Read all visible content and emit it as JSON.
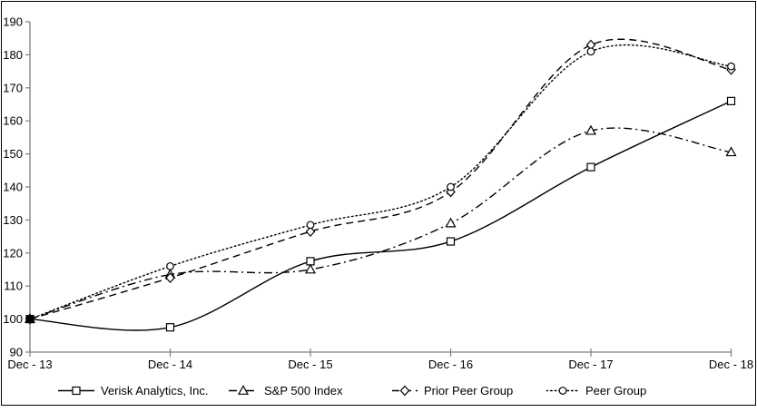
{
  "figure": {
    "background_color": "#ffffff",
    "frame_color": "#000000",
    "axis_color": "#7f7f7f",
    "series_color": "#000000"
  },
  "chart_data": {
    "type": "line",
    "smooth": true,
    "grid": false,
    "x": [
      "Dec - 13",
      "Dec - 14",
      "Dec - 15",
      "Dec - 16",
      "Dec - 17",
      "Dec - 18"
    ],
    "series": [
      {
        "name": "Verisk Analytics, Inc.",
        "marker": "square",
        "line_style": "solid",
        "values": [
          100,
          97.5,
          117.5,
          123.5,
          146,
          166
        ]
      },
      {
        "name": "S&P 500 Index",
        "marker": "triangle",
        "line_style": "dash-dot",
        "values": [
          100,
          113.5,
          115,
          129,
          157,
          150.5
        ]
      },
      {
        "name": "Prior Peer Group",
        "marker": "diamond",
        "line_style": "dashed",
        "values": [
          100,
          112.5,
          126.5,
          138.5,
          183,
          175.5
        ]
      },
      {
        "name": "Peer Group",
        "marker": "circle",
        "line_style": "dotted",
        "values": [
          100,
          116,
          128.5,
          140,
          181,
          176.5
        ]
      }
    ],
    "ylim": [
      90,
      190
    ],
    "y_ticks": [
      90,
      100,
      110,
      120,
      130,
      140,
      150,
      160,
      170,
      180,
      190
    ],
    "xlabel": "",
    "ylabel": "",
    "title": "",
    "legend_position": "bottom"
  }
}
